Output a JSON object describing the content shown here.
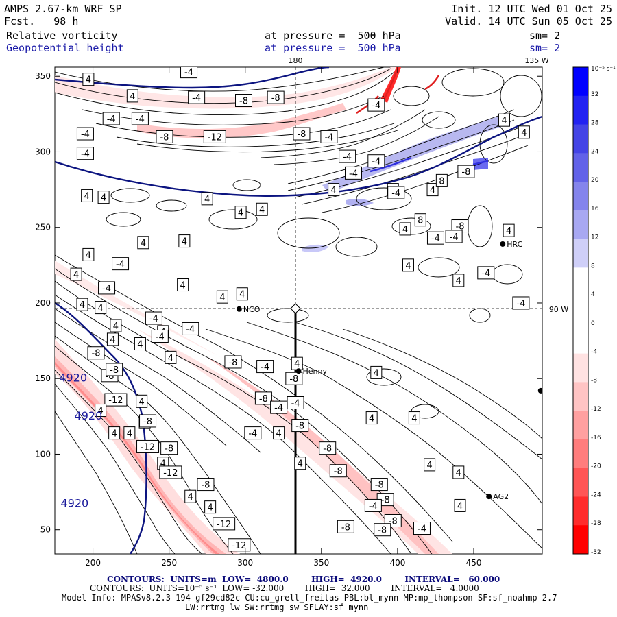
{
  "header": {
    "model": "AMPS 2.67-km WRF SP",
    "fcst": "Fcst.   98 h",
    "init": "Init. 12 UTC Wed 01 Oct 25",
    "valid": "Valid. 14 UTC Sun 05 Oct 25",
    "field1": "Relative vorticity",
    "field2": "Geopotential height",
    "pressure1": "at pressure =  500 hPa",
    "pressure2": "at pressure =  500 hPa",
    "sm1": "sm= 2",
    "sm2": "sm= 2"
  },
  "map": {
    "lon_top_180": "180",
    "lon_top_135": "135 W",
    "lon_right_90": "90 W"
  },
  "stations": [
    {
      "name": "NCO",
      "x": 296,
      "y": 196
    },
    {
      "name": "Henny",
      "x": 335,
      "y": 155
    },
    {
      "name": "HRC",
      "x": 469,
      "y": 239
    },
    {
      "name": "AG2",
      "x": 460,
      "y": 72
    },
    {
      "name": "",
      "x": 494,
      "y": 142
    }
  ],
  "footer": {
    "contours_height": "CONTOURS:  UNITS=m  LOW=  4800.0        HIGH=  4920.0        INTERVAL=   60.000",
    "contours_vort": "CONTOURS:  UNITS=10⁻⁵ s⁻¹  LOW= -32.000        HIGH=  32.000        INTERVAL=   4.0000",
    "model_info": "Model Info: MPASv8.2.3-194-gf29cd82c CU:cu_grell_freitas PBL:bl_mynn MP:mp_thompson SF:sf_noahmp 2.7",
    "model_info2": "LW:rrtmg_lw SW:rrtmg_sw SFLAY:sf_mynn"
  },
  "chart_data": {
    "type": "contour",
    "title": "Relative vorticity / Geopotential height at 500 hPa",
    "xlim": [
      175,
      495
    ],
    "ylim": [
      34,
      356
    ],
    "x_ticks": [
      200,
      250,
      300,
      350,
      400,
      450
    ],
    "y_ticks": [
      50,
      100,
      150,
      200,
      250,
      300,
      350
    ],
    "colorbar": {
      "units": "10⁻⁵ s⁻¹",
      "levels": [
        32,
        28,
        24,
        20,
        16,
        12,
        8,
        4,
        0,
        -4,
        -8,
        -12,
        -16,
        -20,
        -24,
        -28,
        -32
      ],
      "colors": [
        "#0000ff",
        "#2222f2",
        "#4444e6",
        "#6262e8",
        "#8484ec",
        "#a8a8f2",
        "#cfcff8",
        "#ffffff",
        "#ffffff",
        "#ffffff",
        "#ffe2e2",
        "#ffc4c4",
        "#ffa0a0",
        "#ff7d7d",
        "#ff5555",
        "#ff2c2c",
        "#ff0000"
      ]
    },
    "height_labels": [
      {
        "text": "4920",
        "x": 187,
        "y": 148
      },
      {
        "text": "4920",
        "x": 197,
        "y": 123
      },
      {
        "text": "4920",
        "x": 188,
        "y": 65
      }
    ],
    "vorticity_labels": [
      {
        "text": "4",
        "x": 197,
        "y": 348
      },
      {
        "text": "-4",
        "x": 263,
        "y": 353
      },
      {
        "text": "4",
        "x": 226,
        "y": 337
      },
      {
        "text": "-4",
        "x": 268,
        "y": 336
      },
      {
        "text": "-8",
        "x": 299,
        "y": 334
      },
      {
        "text": "-8",
        "x": 320,
        "y": 336
      },
      {
        "text": "-4",
        "x": 212,
        "y": 322
      },
      {
        "text": "-4",
        "x": 231,
        "y": 322
      },
      {
        "text": "-4",
        "x": 195,
        "y": 312
      },
      {
        "text": "-8",
        "x": 247,
        "y": 310
      },
      {
        "text": "-12",
        "x": 280,
        "y": 310
      },
      {
        "text": "-8",
        "x": 337,
        "y": 312
      },
      {
        "text": "-4",
        "x": 355,
        "y": 310
      },
      {
        "text": "-4",
        "x": 195,
        "y": 299
      },
      {
        "text": "-4",
        "x": 367,
        "y": 297
      },
      {
        "text": "-4",
        "x": 371,
        "y": 286
      },
      {
        "text": "-4",
        "x": 386,
        "y": 294
      },
      {
        "text": "4",
        "x": 358,
        "y": 275
      },
      {
        "text": "4",
        "x": 397,
        "y": 275
      },
      {
        "text": "-4",
        "x": 399,
        "y": 273
      },
      {
        "text": "4",
        "x": 423,
        "y": 275
      },
      {
        "text": "8",
        "x": 429,
        "y": 281
      },
      {
        "text": "-8",
        "x": 445,
        "y": 287
      },
      {
        "text": "8",
        "x": 415,
        "y": 255
      },
      {
        "text": "4",
        "x": 405,
        "y": 249
      },
      {
        "text": "-8",
        "x": 441,
        "y": 251
      },
      {
        "text": "-4",
        "x": 425,
        "y": 243
      },
      {
        "text": "4",
        "x": 407,
        "y": 225
      },
      {
        "text": "4",
        "x": 196,
        "y": 271
      },
      {
        "text": "4",
        "x": 207,
        "y": 270
      },
      {
        "text": "4",
        "x": 275,
        "y": 269
      },
      {
        "text": "4",
        "x": 311,
        "y": 262
      },
      {
        "text": "4",
        "x": 297,
        "y": 260
      },
      {
        "text": "4",
        "x": 233,
        "y": 240
      },
      {
        "text": "4",
        "x": 260,
        "y": 241
      },
      {
        "text": "4",
        "x": 197,
        "y": 232
      },
      {
        "text": "-4",
        "x": 218,
        "y": 226
      },
      {
        "text": "4",
        "x": 189,
        "y": 219
      },
      {
        "text": "-4",
        "x": 209,
        "y": 210
      },
      {
        "text": "4",
        "x": 259,
        "y": 212
      },
      {
        "text": "4",
        "x": 285,
        "y": 204
      },
      {
        "text": "4",
        "x": 298,
        "y": 206
      },
      {
        "text": "4",
        "x": 193,
        "y": 199
      },
      {
        "text": "4",
        "x": 205,
        "y": 197
      },
      {
        "text": "-4",
        "x": 240,
        "y": 190
      },
      {
        "text": "4",
        "x": 215,
        "y": 185
      },
      {
        "text": "4",
        "x": 246,
        "y": 181
      },
      {
        "text": "-4",
        "x": 264,
        "y": 183
      },
      {
        "text": "-4",
        "x": 244,
        "y": 178
      },
      {
        "text": "4",
        "x": 213,
        "y": 176
      },
      {
        "text": "4",
        "x": 231,
        "y": 173
      },
      {
        "text": "-8",
        "x": 202,
        "y": 167
      },
      {
        "text": "4",
        "x": 251,
        "y": 164
      },
      {
        "text": "-8",
        "x": 292,
        "y": 161
      },
      {
        "text": "-4",
        "x": 313,
        "y": 158
      },
      {
        "text": "4",
        "x": 334,
        "y": 160
      },
      {
        "text": "-8",
        "x": 211,
        "y": 152
      },
      {
        "text": "-8",
        "x": 214,
        "y": 156
      },
      {
        "text": "-8",
        "x": 332,
        "y": 150
      },
      {
        "text": "4",
        "x": 386,
        "y": 154
      },
      {
        "text": "-12",
        "x": 215,
        "y": 136
      },
      {
        "text": "4",
        "x": 205,
        "y": 129
      },
      {
        "text": "4",
        "x": 232,
        "y": 135
      },
      {
        "text": "-8",
        "x": 312,
        "y": 137
      },
      {
        "text": "-4",
        "x": 333,
        "y": 134
      },
      {
        "text": "-4",
        "x": 322,
        "y": 131
      },
      {
        "text": "4",
        "x": 214,
        "y": 114
      },
      {
        "text": "4",
        "x": 234,
        "y": 121
      },
      {
        "text": "-8",
        "x": 236,
        "y": 122
      },
      {
        "text": "-8",
        "x": 336,
        "y": 119
      },
      {
        "text": "-4",
        "x": 305,
        "y": 114
      },
      {
        "text": "4",
        "x": 322,
        "y": 114
      },
      {
        "text": "4",
        "x": 383,
        "y": 124
      },
      {
        "text": "4",
        "x": 411,
        "y": 124
      },
      {
        "text": "4",
        "x": 224,
        "y": 114
      },
      {
        "text": "-12",
        "x": 236,
        "y": 105
      },
      {
        "text": "-8",
        "x": 250,
        "y": 104
      },
      {
        "text": "4",
        "x": 246,
        "y": 94
      },
      {
        "text": "-8",
        "x": 354,
        "y": 104
      },
      {
        "text": "-12",
        "x": 251,
        "y": 88
      },
      {
        "text": "-8",
        "x": 361,
        "y": 89
      },
      {
        "text": "4",
        "x": 336,
        "y": 94
      },
      {
        "text": "4",
        "x": 421,
        "y": 93
      },
      {
        "text": "4",
        "x": 440,
        "y": 88
      },
      {
        "text": "-8",
        "x": 274,
        "y": 80
      },
      {
        "text": "4",
        "x": 264,
        "y": 72
      },
      {
        "text": "-8",
        "x": 388,
        "y": 80
      },
      {
        "text": "-8",
        "x": 392,
        "y": 70
      },
      {
        "text": "-4",
        "x": 384,
        "y": 66
      },
      {
        "text": "4",
        "x": 277,
        "y": 65
      },
      {
        "text": "4",
        "x": 441,
        "y": 66
      },
      {
        "text": "-12",
        "x": 286,
        "y": 54
      },
      {
        "text": "-8",
        "x": 397,
        "y": 56
      },
      {
        "text": "-8",
        "x": 390,
        "y": 50
      },
      {
        "text": "-4",
        "x": 416,
        "y": 51
      },
      {
        "text": "-8",
        "x": 366,
        "y": 52
      },
      {
        "text": "-12",
        "x": 296,
        "y": 40
      },
      {
        "text": "4",
        "x": 470,
        "y": 321
      },
      {
        "text": "4",
        "x": 483,
        "y": 313
      },
      {
        "text": "4",
        "x": 473,
        "y": 248
      },
      {
        "text": "4",
        "x": 440,
        "y": 215
      },
      {
        "text": "-4",
        "x": 458,
        "y": 220
      },
      {
        "text": "-4",
        "x": 481,
        "y": 200
      },
      {
        "text": "-4",
        "x": 437,
        "y": 244
      },
      {
        "text": "-4",
        "x": 386,
        "y": 331
      }
    ]
  }
}
